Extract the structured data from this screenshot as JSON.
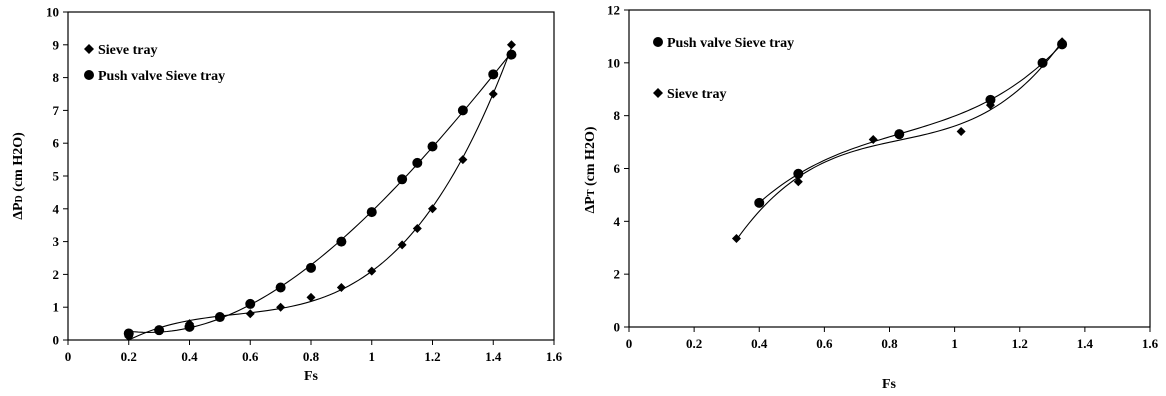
{
  "chart_data": [
    {
      "type": "scatter",
      "title": "",
      "xlabel": "Fs",
      "ylabel": "ΔPD (cm H2O)",
      "ylabel_main": "ΔP",
      "ylabel_sub": "D",
      "ylabel_rest": " (cm H2O)",
      "xlim": [
        0,
        1.6
      ],
      "ylim": [
        0,
        10
      ],
      "x_ticks": [
        "0",
        "0.2",
        "0.4",
        "0.6",
        "0.8",
        "1",
        "1.2",
        "1.4",
        "1.6"
      ],
      "y_ticks": [
        "0",
        "1",
        "2",
        "3",
        "4",
        "5",
        "6",
        "7",
        "8",
        "9",
        "10"
      ],
      "grid": false,
      "legend_position": "top-left",
      "series": [
        {
          "name": "Sieve tray",
          "marker": "diamond",
          "x": [
            0.2,
            0.3,
            0.4,
            0.5,
            0.6,
            0.7,
            0.8,
            0.9,
            1.0,
            1.1,
            1.15,
            1.2,
            1.3,
            1.4,
            1.46
          ],
          "y": [
            0.1,
            0.3,
            0.5,
            0.7,
            0.8,
            1.0,
            1.3,
            1.6,
            2.1,
            2.9,
            3.4,
            4.0,
            5.5,
            7.5,
            9.0
          ]
        },
        {
          "name": "Push valve Sieve tray",
          "marker": "circle",
          "x": [
            0.2,
            0.3,
            0.4,
            0.5,
            0.6,
            0.7,
            0.8,
            0.9,
            1.0,
            1.1,
            1.15,
            1.2,
            1.3,
            1.4,
            1.46
          ],
          "y": [
            0.2,
            0.3,
            0.4,
            0.7,
            1.1,
            1.6,
            2.2,
            3.0,
            3.9,
            4.9,
            5.4,
            5.9,
            7.0,
            8.1,
            8.7
          ]
        }
      ]
    },
    {
      "type": "scatter",
      "title": "",
      "xlabel": "Fs",
      "ylabel": "ΔPT (cm H2O)",
      "ylabel_main": "ΔP",
      "ylabel_sub": "T",
      "ylabel_rest": " (cm H2O)",
      "xlim": [
        0,
        1.6
      ],
      "ylim": [
        0,
        12
      ],
      "x_ticks": [
        "0",
        "0.2",
        "0.4",
        "0.6",
        "0.8",
        "1",
        "1.2",
        "1.4",
        "1.6"
      ],
      "y_ticks": [
        "0",
        "2",
        "4",
        "6",
        "8",
        "10",
        "12"
      ],
      "grid": false,
      "legend_position": "top-left",
      "series": [
        {
          "name": "Push valve Sieve tray",
          "marker": "circle",
          "x": [
            0.4,
            0.52,
            0.83,
            1.11,
            1.27,
            1.33
          ],
          "y": [
            4.7,
            5.8,
            7.3,
            8.6,
            10.0,
            10.7
          ]
        },
        {
          "name": "Sieve tray",
          "marker": "diamond",
          "x": [
            0.33,
            0.52,
            0.75,
            1.02,
            1.11,
            1.33
          ],
          "y": [
            3.35,
            5.5,
            7.1,
            7.4,
            8.4,
            10.8
          ]
        }
      ]
    }
  ]
}
